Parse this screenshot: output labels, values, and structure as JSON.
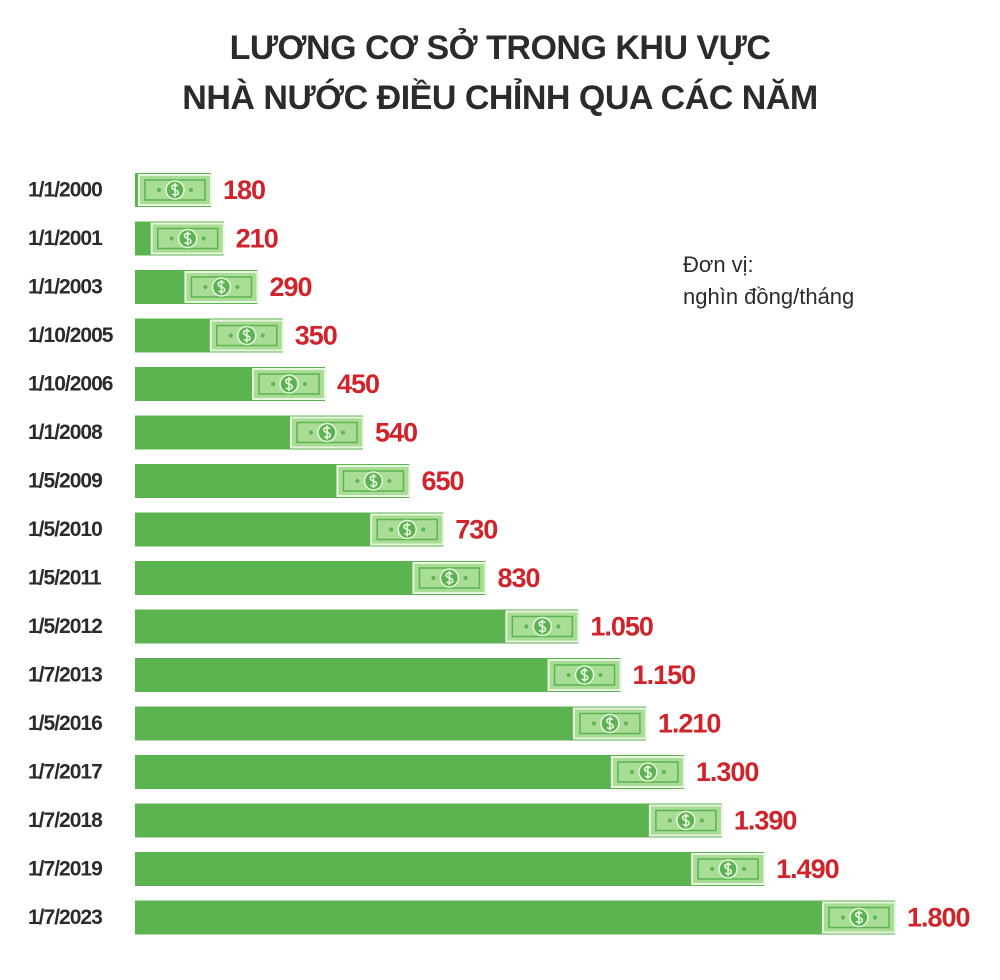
{
  "chart_data": {
    "type": "bar",
    "orientation": "horizontal",
    "title": [
      "LƯƠNG CƠ SỞ TRONG KHU VỰC",
      "NHÀ NƯỚC ĐIỀU CHỈNH QUA CÁC NĂM"
    ],
    "annotation": [
      "Đơn vị:",
      "nghìn đồng/tháng"
    ],
    "categories": [
      "1/1/2000",
      "1/1/2001",
      "1/1/2003",
      "1/10/2005",
      "1/10/2006",
      "1/1/2008",
      "1/5/2009",
      "1/5/2010",
      "1/5/2011",
      "1/5/2012",
      "1/7/2013",
      "1/5/2016",
      "1/7/2017",
      "1/7/2018",
      "1/7/2019",
      "1/7/2023"
    ],
    "values": [
      180,
      210,
      290,
      350,
      450,
      540,
      650,
      730,
      830,
      1050,
      1150,
      1210,
      1300,
      1390,
      1490,
      1800
    ],
    "value_labels": [
      "180",
      "210",
      "290",
      "350",
      "450",
      "540",
      "650",
      "730",
      "830",
      "1.050",
      "1.150",
      "1.210",
      "1.300",
      "1.390",
      "1.490",
      "1.800"
    ],
    "color": "#5bb450",
    "label_color": "#d0232a",
    "xlim": [
      0,
      1800
    ]
  }
}
